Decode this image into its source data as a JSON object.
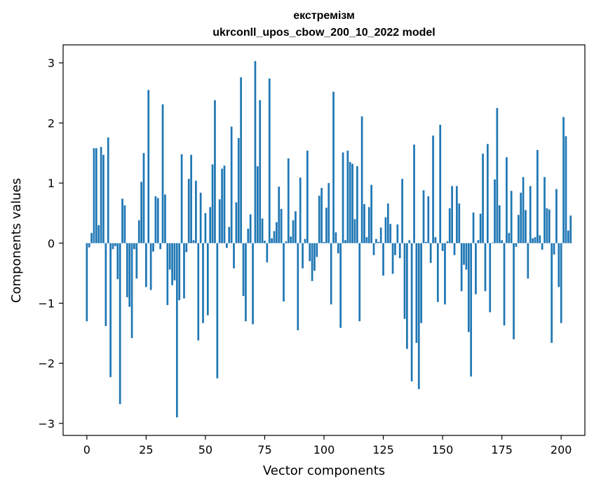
{
  "chart_data": {
    "type": "bar",
    "title": "екстремізм",
    "subtitle": "ukrconll_upos_cbow_200_10_2022 model",
    "xlabel": "Vector components",
    "ylabel": "Components values",
    "xlim": [
      -10,
      210
    ],
    "ylim": [
      -3.2,
      3.3
    ],
    "xticks": [
      0,
      25,
      50,
      75,
      100,
      125,
      150,
      175,
      200
    ],
    "yticks": [
      -3,
      -2,
      -1,
      0,
      1,
      2,
      3
    ],
    "bar_color": "#1f77b4",
    "grid": false,
    "legend": "none",
    "values": [
      -1.3,
      -0.07,
      0.17,
      1.58,
      1.58,
      0.3,
      1.6,
      1.47,
      -1.38,
      1.76,
      -2.23,
      -0.1,
      -0.05,
      -0.6,
      -2.68,
      0.74,
      0.63,
      -0.9,
      -1.06,
      -1.58,
      -0.1,
      -0.59,
      0.38,
      1.02,
      1.5,
      -0.73,
      2.55,
      -0.78,
      -0.14,
      0.78,
      0.75,
      -0.1,
      2.31,
      0.81,
      -1.03,
      -0.44,
      -0.7,
      -0.62,
      -2.9,
      -0.95,
      1.48,
      -0.92,
      -0.15,
      1.07,
      1.47,
      0.05,
      1.04,
      -1.62,
      0.84,
      -1.33,
      0.5,
      -1.2,
      0.6,
      1.31,
      2.38,
      -2.25,
      0.73,
      1.24,
      1.29,
      -0.08,
      0.27,
      1.94,
      -0.42,
      0.68,
      1.75,
      2.76,
      -0.88,
      -1.3,
      0.24,
      0.48,
      -1.35,
      3.03,
      1.28,
      2.38,
      0.41,
      0.04,
      -0.32,
      2.74,
      0.08,
      0.2,
      0.35,
      0.94,
      0.57,
      -0.97,
      0.03,
      1.41,
      0.11,
      0.38,
      0.53,
      -1.45,
      1.09,
      -0.42,
      0.07,
      1.54,
      -0.3,
      -0.63,
      -0.46,
      -0.23,
      0.79,
      0.92,
      0.02,
      0.59,
      1.0,
      -1.02,
      2.52,
      0.18,
      -0.17,
      -1.41,
      1.51,
      0.05,
      1.54,
      1.35,
      1.32,
      0.4,
      1.28,
      -1.3,
      2.11,
      0.65,
      0.1,
      0.6,
      0.97,
      -0.2,
      0.07,
      0.02,
      0.26,
      -0.54,
      0.43,
      0.66,
      0.32,
      -0.51,
      -0.2,
      0.31,
      -0.25,
      1.07,
      -1.26,
      -1.76,
      0.05,
      -2.3,
      1.64,
      -1.66,
      -2.43,
      -1.33,
      0.88,
      0.02,
      0.78,
      -0.33,
      1.79,
      0.1,
      -0.98,
      1.97,
      -0.13,
      -1.02,
      0.03,
      0.58,
      0.95,
      -0.2,
      0.95,
      0.66,
      -0.8,
      -0.36,
      -0.44,
      -1.48,
      -2.22,
      0.51,
      -0.85,
      0.05,
      0.49,
      1.49,
      -0.8,
      1.65,
      -1.15,
      0.01,
      1.06,
      2.25,
      0.63,
      0.05,
      -1.37,
      1.43,
      0.17,
      0.87,
      -1.6,
      -0.06,
      0.47,
      0.84,
      1.1,
      0.55,
      -0.59,
      0.95,
      0.08,
      0.1,
      1.55,
      0.13,
      -0.11,
      1.1,
      0.58,
      0.56,
      -1.66,
      -0.19,
      0.9,
      -0.73,
      -1.33,
      2.1,
      1.78,
      0.21,
      0.46
    ]
  }
}
